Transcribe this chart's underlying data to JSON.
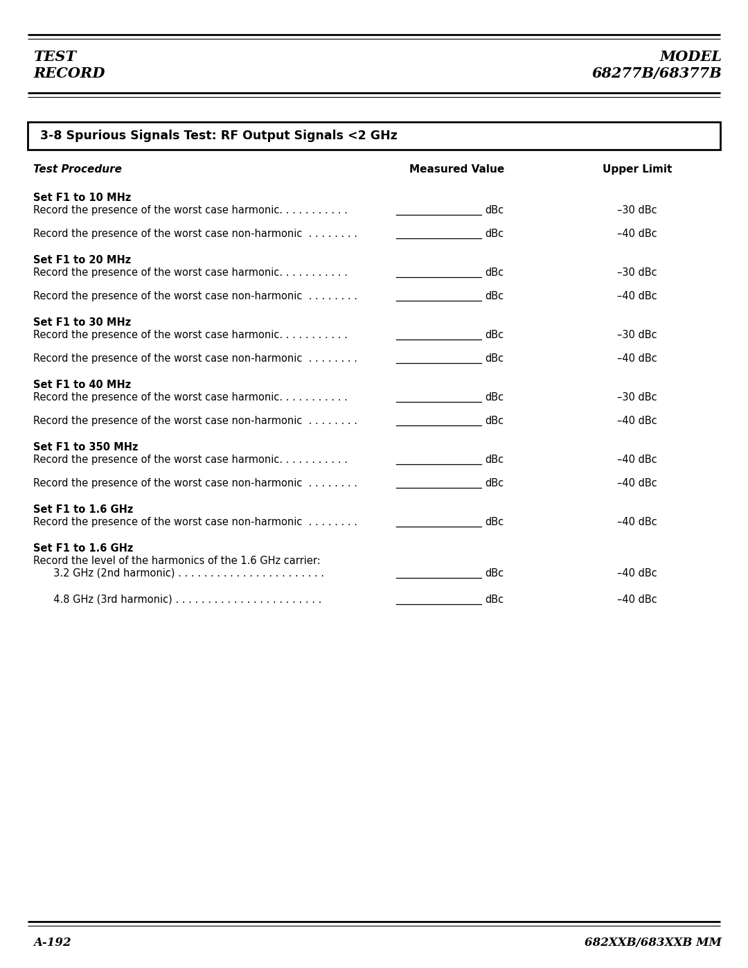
{
  "bg_color": "#ffffff",
  "header_left_line1": "TEST",
  "header_left_line2": "RECORD",
  "header_right_line1": "MODEL",
  "header_right_line2": "68277B/68377B",
  "section_title": "3-8 Spurious Signals Test: RF Output Signals <2 GHz",
  "col_header_proc": "Test Procedure",
  "col_header_meas": "Measured Value",
  "col_header_limit": "Upper Limit",
  "rows": [
    {
      "type": "set",
      "text": "Set F1 to 10 MHz"
    },
    {
      "type": "record",
      "text": "Record the presence of the worst case harmonic. . . . . . . . . . .",
      "limit": "–30 dBc"
    },
    {
      "type": "record",
      "text": "Record the presence of the worst case non-harmonic  . . . . . . . .",
      "limit": "–40 dBc"
    },
    {
      "type": "set",
      "text": "Set F1 to 20 MHz"
    },
    {
      "type": "record",
      "text": "Record the presence of the worst case harmonic. . . . . . . . . . .",
      "limit": "–30 dBc"
    },
    {
      "type": "record",
      "text": "Record the presence of the worst case non-harmonic  . . . . . . . .",
      "limit": "–40 dBc"
    },
    {
      "type": "set",
      "text": "Set F1 to 30 MHz"
    },
    {
      "type": "record",
      "text": "Record the presence of the worst case harmonic. . . . . . . . . . .",
      "limit": "–30 dBc"
    },
    {
      "type": "record",
      "text": "Record the presence of the worst case non-harmonic  . . . . . . . .",
      "limit": "–40 dBc"
    },
    {
      "type": "set",
      "text": "Set F1 to 40 MHz"
    },
    {
      "type": "record",
      "text": "Record the presence of the worst case harmonic. . . . . . . . . . .",
      "limit": "–30 dBc"
    },
    {
      "type": "record",
      "text": "Record the presence of the worst case non-harmonic  . . . . . . . .",
      "limit": "–40 dBc"
    },
    {
      "type": "set",
      "text": "Set F1 to 350 MHz"
    },
    {
      "type": "record",
      "text": "Record the presence of the worst case harmonic. . . . . . . . . . .",
      "limit": "–40 dBc"
    },
    {
      "type": "record",
      "text": "Record the presence of the worst case non-harmonic  . . . . . . . .",
      "limit": "–40 dBc"
    },
    {
      "type": "set",
      "text": "Set F1 to 1.6 GHz"
    },
    {
      "type": "record",
      "text": "Record the presence of the worst case non-harmonic  . . . . . . . .",
      "limit": "–40 dBc"
    },
    {
      "type": "set",
      "text": "Set F1 to 1.6 GHz"
    },
    {
      "type": "plain",
      "text": "Record the level of the harmonics of the 1.6 GHz carrier:"
    },
    {
      "type": "record_indent",
      "text": "  3.2 GHz (2nd harmonic) . . . . . . . . . . . . . . . . . . . . . . .",
      "limit": "–40 dBc"
    },
    {
      "type": "record_indent2",
      "text": "  4.8 GHz (3rd harmonic) . . . . . . . . . . . . . . . . . . . . . . .",
      "limit": "–40 dBc"
    }
  ],
  "footer_left": "A-192",
  "footer_right": "682XXB/683XXB MM"
}
